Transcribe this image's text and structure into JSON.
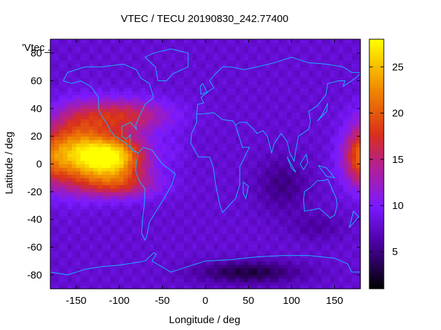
{
  "chart_data": {
    "type": "heatmap",
    "title": "VTEC / TECU 20190830_242.77400",
    "xlabel": "Longitude / deg",
    "ylabel": "Latitude / deg",
    "legend_label": "'Vtec_",
    "xlim": [
      -180,
      180
    ],
    "ylim": [
      -90,
      90
    ],
    "xticks": [
      -150,
      -100,
      -50,
      0,
      50,
      100,
      150
    ],
    "yticks": [
      -80,
      -60,
      -40,
      -20,
      0,
      20,
      40,
      60,
      80
    ],
    "colorbar": {
      "min": 1,
      "max": 28,
      "ticks": [
        5,
        10,
        15,
        20,
        25
      ]
    },
    "grid_resolution_deg": {
      "lon": 5,
      "lat": 2.5
    },
    "features": [
      {
        "name": "main-enhancement",
        "lon": -110,
        "lat": 5,
        "peak": 28,
        "sigma_lon": 38,
        "sigma_lat": 16
      },
      {
        "name": "secondary-enhancement",
        "lon": -150,
        "lat": 10,
        "peak": 19,
        "sigma_lon": 30,
        "sigma_lat": 25
      },
      {
        "name": "southern-crest",
        "lon": -100,
        "lat": -15,
        "peak": 15,
        "sigma_lon": 45,
        "sigma_lat": 10
      },
      {
        "name": "northern-crest",
        "lon": -100,
        "lat": 35,
        "peak": 17,
        "sigma_lon": 55,
        "sigma_lat": 12
      },
      {
        "name": "eastern-edge-enhancement",
        "lon": 180,
        "lat": 5,
        "peak": 17,
        "sigma_lon": 22,
        "sigma_lat": 20
      },
      {
        "name": "atlantic-enhancement",
        "lon": -35,
        "lat": 10,
        "peak": 9,
        "sigma_lon": 15,
        "sigma_lat": 12
      },
      {
        "name": "indian-ocean-low",
        "lon": 90,
        "lat": -15,
        "peak": -3,
        "sigma_lon": 30,
        "sigma_lat": 20
      },
      {
        "name": "southern-low",
        "lon": 50,
        "lat": -78,
        "peak": -5,
        "sigma_lon": 60,
        "sigma_lat": 8
      },
      {
        "name": "south-pacific-low",
        "lon": 130,
        "lat": -45,
        "peak": -2,
        "sigma_lon": 30,
        "sigma_lat": 10
      }
    ],
    "background_value": 8
  }
}
